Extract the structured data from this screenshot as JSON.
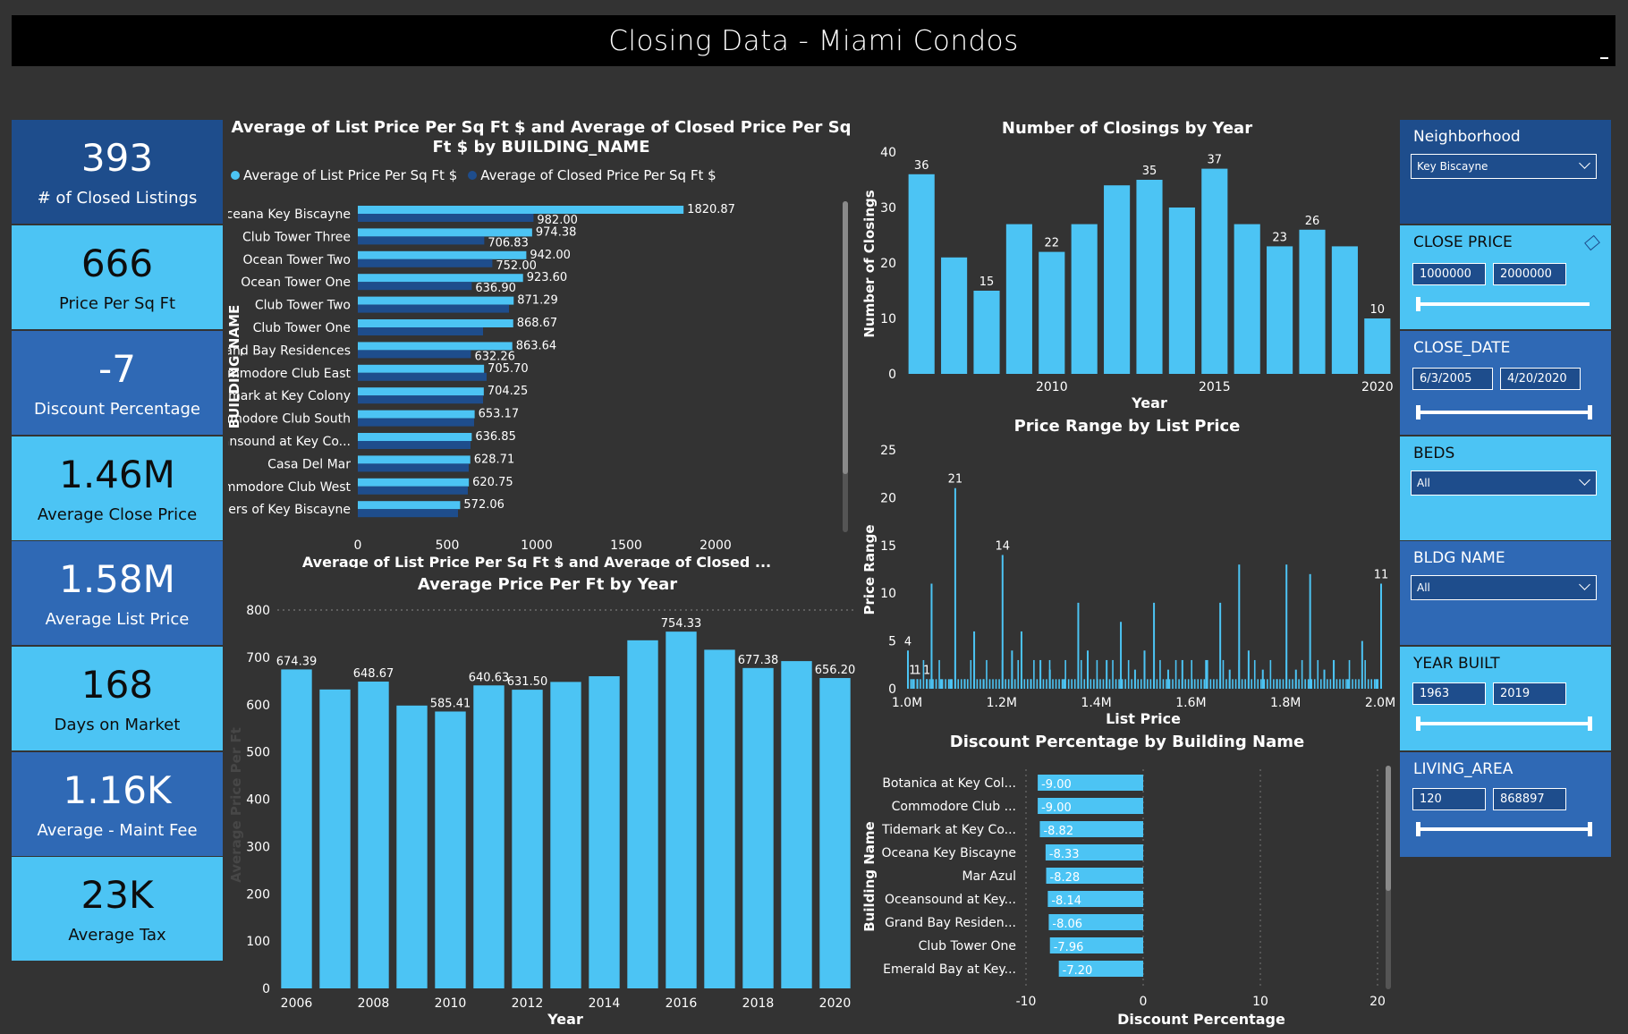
{
  "title": "Closing Data - Miami Condos",
  "kpis": [
    {
      "value": "393",
      "label": "# of Closed Listings"
    },
    {
      "value": "666",
      "label": "Price Per Sq Ft"
    },
    {
      "value": "-7",
      "label": "Discount Percentage"
    },
    {
      "value": "1.46M",
      "label": "Average Close Price"
    },
    {
      "value": "1.58M",
      "label": "Average List Price"
    },
    {
      "value": "168",
      "label": "Days on Market"
    },
    {
      "value": "1.16K",
      "label": "Average - Maint Fee"
    },
    {
      "value": "23K",
      "label": "Average Tax"
    }
  ],
  "colors": {
    "light": "#4cc4f4",
    "dark": "#1e4d8c",
    "mid": "#2f69b5",
    "bg": "#333333"
  },
  "chart_data": [
    {
      "type": "bar",
      "orientation": "horizontal",
      "title": "Average of List Price Per Sq Ft $ and Average of Closed Price Per Sq Ft $ by BUILDING_NAME",
      "ylabel": "BUILDING_NAME",
      "xlabel": "Average of List Price Per Sq Ft $ and Average of Closed ...",
      "xlim": [
        0,
        2000
      ],
      "xticks": [
        "0",
        "500",
        "1000",
        "1500",
        "2000"
      ],
      "legend_position": "top-left",
      "categories": [
        "Oceana Key Biscayne",
        "Club Tower Three",
        "Ocean Tower Two",
        "Ocean Tower One",
        "Club Tower Two",
        "Club Tower One",
        "Grand Bay Residences",
        "Commodore Club East",
        "Tidemark at Key Colony",
        "Commodore Club South",
        "Oceansound at Key Co...",
        "Casa Del Mar",
        "Commodore Club West",
        "Towers of Key Biscayne"
      ],
      "series": [
        {
          "name": "Average of List Price Per Sq Ft $",
          "color": "#4cc4f4",
          "values": [
            1820.87,
            974.38,
            942.0,
            923.6,
            871.29,
            868.67,
            863.64,
            705.7,
            704.25,
            653.17,
            636.85,
            628.71,
            620.75,
            572.06
          ],
          "labels": [
            "1820.87",
            "974.38",
            "942.00",
            "923.60",
            "871.29",
            "868.67",
            "863.64",
            "705.70",
            "704.25",
            "653.17",
            "636.85",
            "628.71",
            "620.75",
            "572.06"
          ]
        },
        {
          "name": "Average of Closed Price Per Sq Ft $",
          "color": "#1e4d8c",
          "values": [
            982.0,
            706.83,
            752.0,
            636.9,
            845,
            700,
            632.26,
            720,
            700,
            650,
            630,
            620,
            615,
            560
          ],
          "labels": [
            "982.00",
            "706.83",
            "752.00",
            "636.90",
            "",
            "",
            "632.26",
            "",
            "",
            "",
            "",
            "",
            "",
            ""
          ]
        }
      ]
    },
    {
      "type": "bar",
      "title": "Average Price Per Ft by Year",
      "xlabel": "Year",
      "ylabel": "Average Price Per Ft",
      "ylim": [
        0,
        800
      ],
      "yticks": [
        "0",
        "100",
        "200",
        "300",
        "400",
        "500",
        "600",
        "700",
        "800"
      ],
      "xticks": [
        "2006",
        "2008",
        "2010",
        "2012",
        "2014",
        "2016",
        "2018",
        "2020"
      ],
      "categories": [
        "2006",
        "2007",
        "2008",
        "2009",
        "2010",
        "2011",
        "2012",
        "2013",
        "2014",
        "2015",
        "2016",
        "2017",
        "2018",
        "2019",
        "2020"
      ],
      "values": [
        674.39,
        632,
        648.67,
        598,
        585.41,
        640.63,
        631.5,
        648,
        660,
        736,
        754.33,
        716,
        677.38,
        692,
        656.2
      ],
      "labels": [
        "674.39",
        "",
        "648.67",
        "",
        "585.41",
        "640.63",
        "631.50",
        "",
        "",
        "",
        "754.33",
        "",
        "677.38",
        "",
        "656.20"
      ]
    },
    {
      "type": "bar",
      "title": "Number of Closings by Year",
      "xlabel": "Year",
      "ylabel": "Number of Closings",
      "ylim": [
        0,
        40
      ],
      "yticks": [
        "0",
        "10",
        "20",
        "30",
        "40"
      ],
      "xticks": [
        "2010",
        "2015",
        "2020"
      ],
      "categories": [
        "2006",
        "2007",
        "2008",
        "2009",
        "2010",
        "2011",
        "2012",
        "2013",
        "2014",
        "2015",
        "2016",
        "2017",
        "2018",
        "2019",
        "2020"
      ],
      "values": [
        36,
        21,
        15,
        27,
        22,
        27,
        34,
        35,
        30,
        37,
        27,
        23,
        26,
        23,
        10
      ],
      "labels": [
        "36",
        "",
        "15",
        "",
        "22",
        "",
        "",
        "35",
        "",
        "37",
        "",
        "23",
        "26",
        "",
        "10"
      ]
    },
    {
      "type": "bar",
      "title": "Price Range by List Price",
      "xlabel": "List Price",
      "ylabel": "Price Range",
      "ylim": [
        0,
        25
      ],
      "yticks": [
        "0",
        "5",
        "10",
        "15",
        "20",
        "25"
      ],
      "xticks": [
        "1.0M",
        "1.2M",
        "1.4M",
        "1.6M",
        "1.8M",
        "2.0M"
      ],
      "xlim": [
        1.0,
        2.0
      ],
      "x": [
        1.0,
        1.01,
        1.02,
        1.04,
        1.05,
        1.07,
        1.09,
        1.1,
        1.12,
        1.14,
        1.16,
        1.2,
        1.22,
        1.24,
        1.26,
        1.28,
        1.3,
        1.33,
        1.36,
        1.38,
        1.4,
        1.42,
        1.45,
        1.48,
        1.5,
        1.52,
        1.55,
        1.58,
        1.6,
        1.63,
        1.66,
        1.68,
        1.7,
        1.72,
        1.75,
        1.78,
        1.8,
        1.82,
        1.85,
        1.88,
        1.9,
        1.93,
        1.96,
        1.99,
        2.0
      ],
      "values": [
        4,
        1,
        1,
        1,
        11,
        1,
        1,
        21,
        1,
        6,
        1,
        14,
        4,
        6,
        1,
        3,
        2,
        1,
        9,
        4,
        1,
        3,
        7,
        2,
        4,
        9,
        2,
        3,
        1,
        3,
        9,
        2,
        13,
        4,
        2,
        1,
        13,
        2,
        12,
        2,
        3,
        1,
        5,
        1,
        11
      ],
      "labels": {
        "0": "4",
        "1": "1",
        "2": "1",
        "3": "1",
        "7": "21",
        "11": "14",
        "44": "11"
      }
    },
    {
      "type": "bar",
      "orientation": "horizontal",
      "title": "Discount Percentage by Building Name",
      "xlabel": "Discount Percentage",
      "ylabel": "Building Name",
      "xlim": [
        -10,
        20
      ],
      "xticks": [
        "-10",
        "0",
        "10",
        "20"
      ],
      "categories": [
        "Botanica at Key Col...",
        "Commodore Club ...",
        "Tidemark at Key Co...",
        "Oceana Key Biscayne",
        "Mar Azul",
        "Oceansound at Key...",
        "Grand Bay Residen...",
        "Club Tower One",
        "Emerald Bay at Key..."
      ],
      "values": [
        -9.0,
        -9.0,
        -8.82,
        -8.33,
        -8.28,
        -8.14,
        -8.06,
        -7.96,
        -7.2
      ],
      "labels": [
        "-9.00",
        "-9.00",
        "-8.82",
        "-8.33",
        "-8.28",
        "-8.14",
        "-8.06",
        "-7.96",
        "-7.20"
      ]
    }
  ],
  "slicers": {
    "neighborhood": {
      "title": "Neighborhood",
      "value": "Key Biscayne"
    },
    "close_price": {
      "title": "CLOSE PRICE",
      "min": "1000000",
      "max": "2000000"
    },
    "close_date": {
      "title": "CLOSE_DATE",
      "min": "6/3/2005",
      "max": "4/20/2020"
    },
    "beds": {
      "title": "BEDS",
      "value": "All"
    },
    "bldg_name": {
      "title": "BLDG NAME",
      "value": "All"
    },
    "year_built": {
      "title": "YEAR BUILT",
      "min": "1963",
      "max": "2019"
    },
    "living_area": {
      "title": "LIVING_AREA",
      "min": "120",
      "max": "868897"
    }
  }
}
